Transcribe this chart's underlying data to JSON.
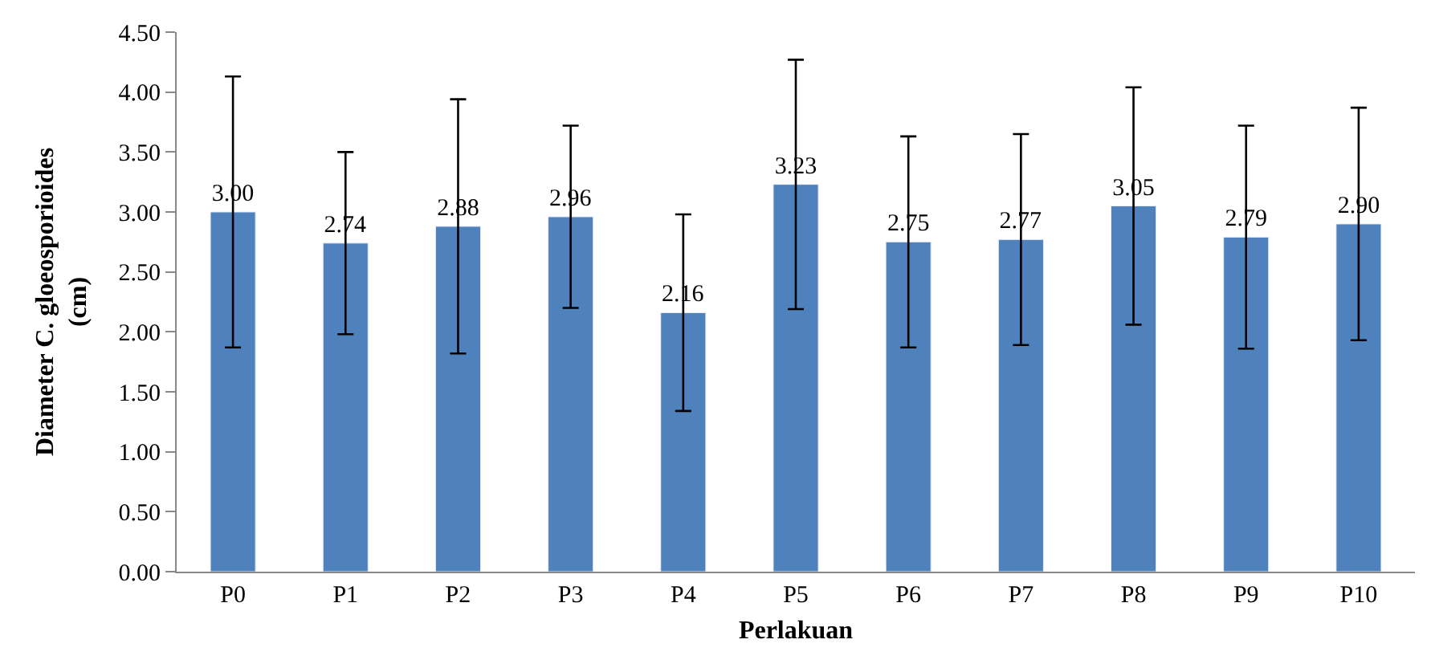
{
  "chart_data": {
    "type": "bar",
    "xlabel": "Perlakuan",
    "ylabel": "Diameter C. gloeosporioides\n(cm)",
    "categories": [
      "P0",
      "P1",
      "P2",
      "P3",
      "P4",
      "P5",
      "P6",
      "P7",
      "P8",
      "P9",
      "P10"
    ],
    "values": [
      3.0,
      2.74,
      2.88,
      2.96,
      2.16,
      3.23,
      2.75,
      2.77,
      3.05,
      2.79,
      2.9
    ],
    "errors": [
      1.13,
      0.76,
      1.06,
      0.76,
      0.82,
      1.04,
      0.88,
      0.88,
      0.99,
      0.93,
      0.97
    ],
    "value_labels": [
      "3.00",
      "2.74",
      "2.88",
      "2.96",
      "2.16",
      "3.23",
      "2.75",
      "2.77",
      "3.05",
      "2.79",
      "2.90"
    ],
    "color": "#4f81bd",
    "ylim": [
      0,
      4.5
    ],
    "yticks": [
      {
        "value": 0,
        "label": "0.00"
      },
      {
        "value": 0.5,
        "label": "0.50"
      },
      {
        "value": 1,
        "label": "1.00"
      },
      {
        "value": 1.5,
        "label": "1.50"
      },
      {
        "value": 2,
        "label": "2.00"
      },
      {
        "value": 2.5,
        "label": "2.50"
      },
      {
        "value": 3,
        "label": "3.00"
      },
      {
        "value": 3.5,
        "label": "3.50"
      },
      {
        "value": 4,
        "label": "4.00"
      },
      {
        "value": 4.5,
        "label": "4.50"
      }
    ]
  }
}
